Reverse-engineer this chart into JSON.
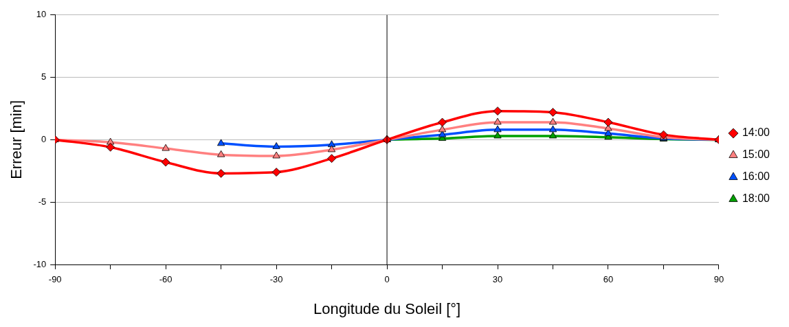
{
  "chart_data": {
    "type": "line",
    "xlabel": "Longitude du Soleil [°]",
    "ylabel": "Erreur [min]",
    "xlim": [
      -90,
      90
    ],
    "xticks": [
      -90,
      {
        "value": -75,
        "label": null
      },
      -60,
      {
        "value": -45,
        "label": null
      },
      -30,
      {
        "value": -15,
        "label": null
      },
      0,
      {
        "value": 15,
        "label": null
      },
      30,
      {
        "value": 45,
        "label": null
      },
      60,
      {
        "value": 75,
        "label": null
      },
      90
    ],
    "ylim": [
      -10,
      10
    ],
    "yticks": [
      -10,
      -5,
      0,
      5,
      10
    ],
    "grid": "y",
    "legend": "right",
    "ref_lines": [
      {
        "axis": "x",
        "value": 0,
        "color": "#000000"
      }
    ],
    "series": [
      {
        "name": "14:00",
        "color": "#ff0000",
        "marker": "diamond",
        "x": [
          -90,
          -75,
          -60,
          -45,
          -30,
          -15,
          0,
          15,
          30,
          45,
          60,
          75,
          90
        ],
        "values": [
          0,
          -0.6,
          -1.8,
          -2.7,
          -2.6,
          -1.5,
          0,
          1.4,
          2.3,
          2.2,
          1.4,
          0.4,
          0
        ]
      },
      {
        "name": "15:00",
        "color": "#ff8080",
        "marker": "triangle",
        "x": [
          -90,
          -75,
          -60,
          -45,
          -30,
          -15,
          0,
          15,
          30,
          45,
          60,
          75,
          90
        ],
        "values": [
          0,
          -0.2,
          -0.7,
          -1.2,
          -1.3,
          -0.8,
          0,
          0.8,
          1.4,
          1.4,
          0.9,
          0.2,
          0
        ]
      },
      {
        "name": "16:00",
        "color": "#0050ff",
        "marker": "triangle",
        "x": [
          -45,
          -30,
          -15,
          0,
          15,
          30,
          45,
          60,
          75,
          90
        ],
        "values": [
          -0.3,
          -0.55,
          -0.4,
          0,
          0.4,
          0.8,
          0.8,
          0.5,
          0.1,
          0
        ]
      },
      {
        "name": "18:00",
        "color": "#00a000",
        "marker": "triangle",
        "x": [
          0,
          15,
          30,
          45,
          60,
          75,
          90
        ],
        "values": [
          0,
          0.1,
          0.3,
          0.3,
          0.2,
          0.05,
          0
        ]
      }
    ]
  }
}
